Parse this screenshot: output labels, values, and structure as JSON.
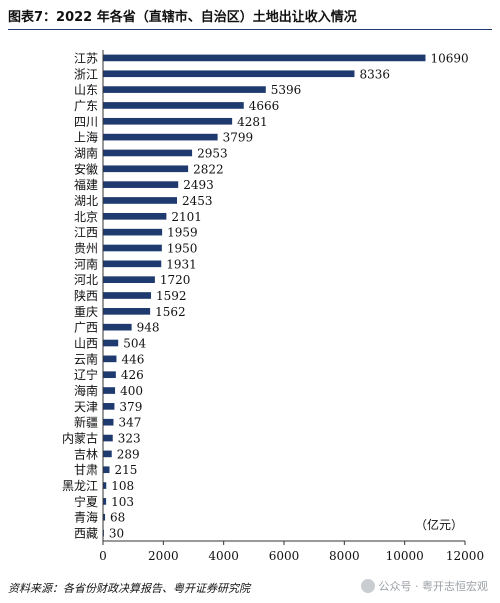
{
  "title": "图表7：2022 年各省（直辖市、自治区）土地出让收入情况",
  "source": "资料来源：各省份财政决算报告、粤开证券研究院",
  "watermark": "公众号 · 粤开志恒宏观",
  "colors": {
    "bar": "#1f3a6e",
    "axis": "#333333",
    "title_rule": "#1f3a6e"
  },
  "chart_data": {
    "type": "bar",
    "orientation": "horizontal",
    "title": "图表7：2022 年各省（直辖市、自治区）土地出让收入情况",
    "unit_label": "（亿元）",
    "categories": [
      "江苏",
      "浙江",
      "山东",
      "广东",
      "四川",
      "上海",
      "湖南",
      "安徽",
      "福建",
      "湖北",
      "北京",
      "江西",
      "贵州",
      "河南",
      "河北",
      "陕西",
      "重庆",
      "广西",
      "山西",
      "云南",
      "辽宁",
      "海南",
      "天津",
      "新疆",
      "内蒙古",
      "吉林",
      "甘肃",
      "黑龙江",
      "宁夏",
      "青海",
      "西藏"
    ],
    "values": [
      10690,
      8336,
      5396,
      4666,
      4281,
      3799,
      2953,
      2822,
      2493,
      2453,
      2101,
      1959,
      1950,
      1931,
      1720,
      1592,
      1562,
      948,
      504,
      446,
      426,
      400,
      379,
      347,
      323,
      289,
      215,
      108,
      103,
      68,
      30
    ],
    "xlim": [
      0,
      12000
    ],
    "xticks": [
      0,
      2000,
      4000,
      6000,
      8000,
      10000,
      12000
    ],
    "grid": false,
    "data_labels": true
  }
}
